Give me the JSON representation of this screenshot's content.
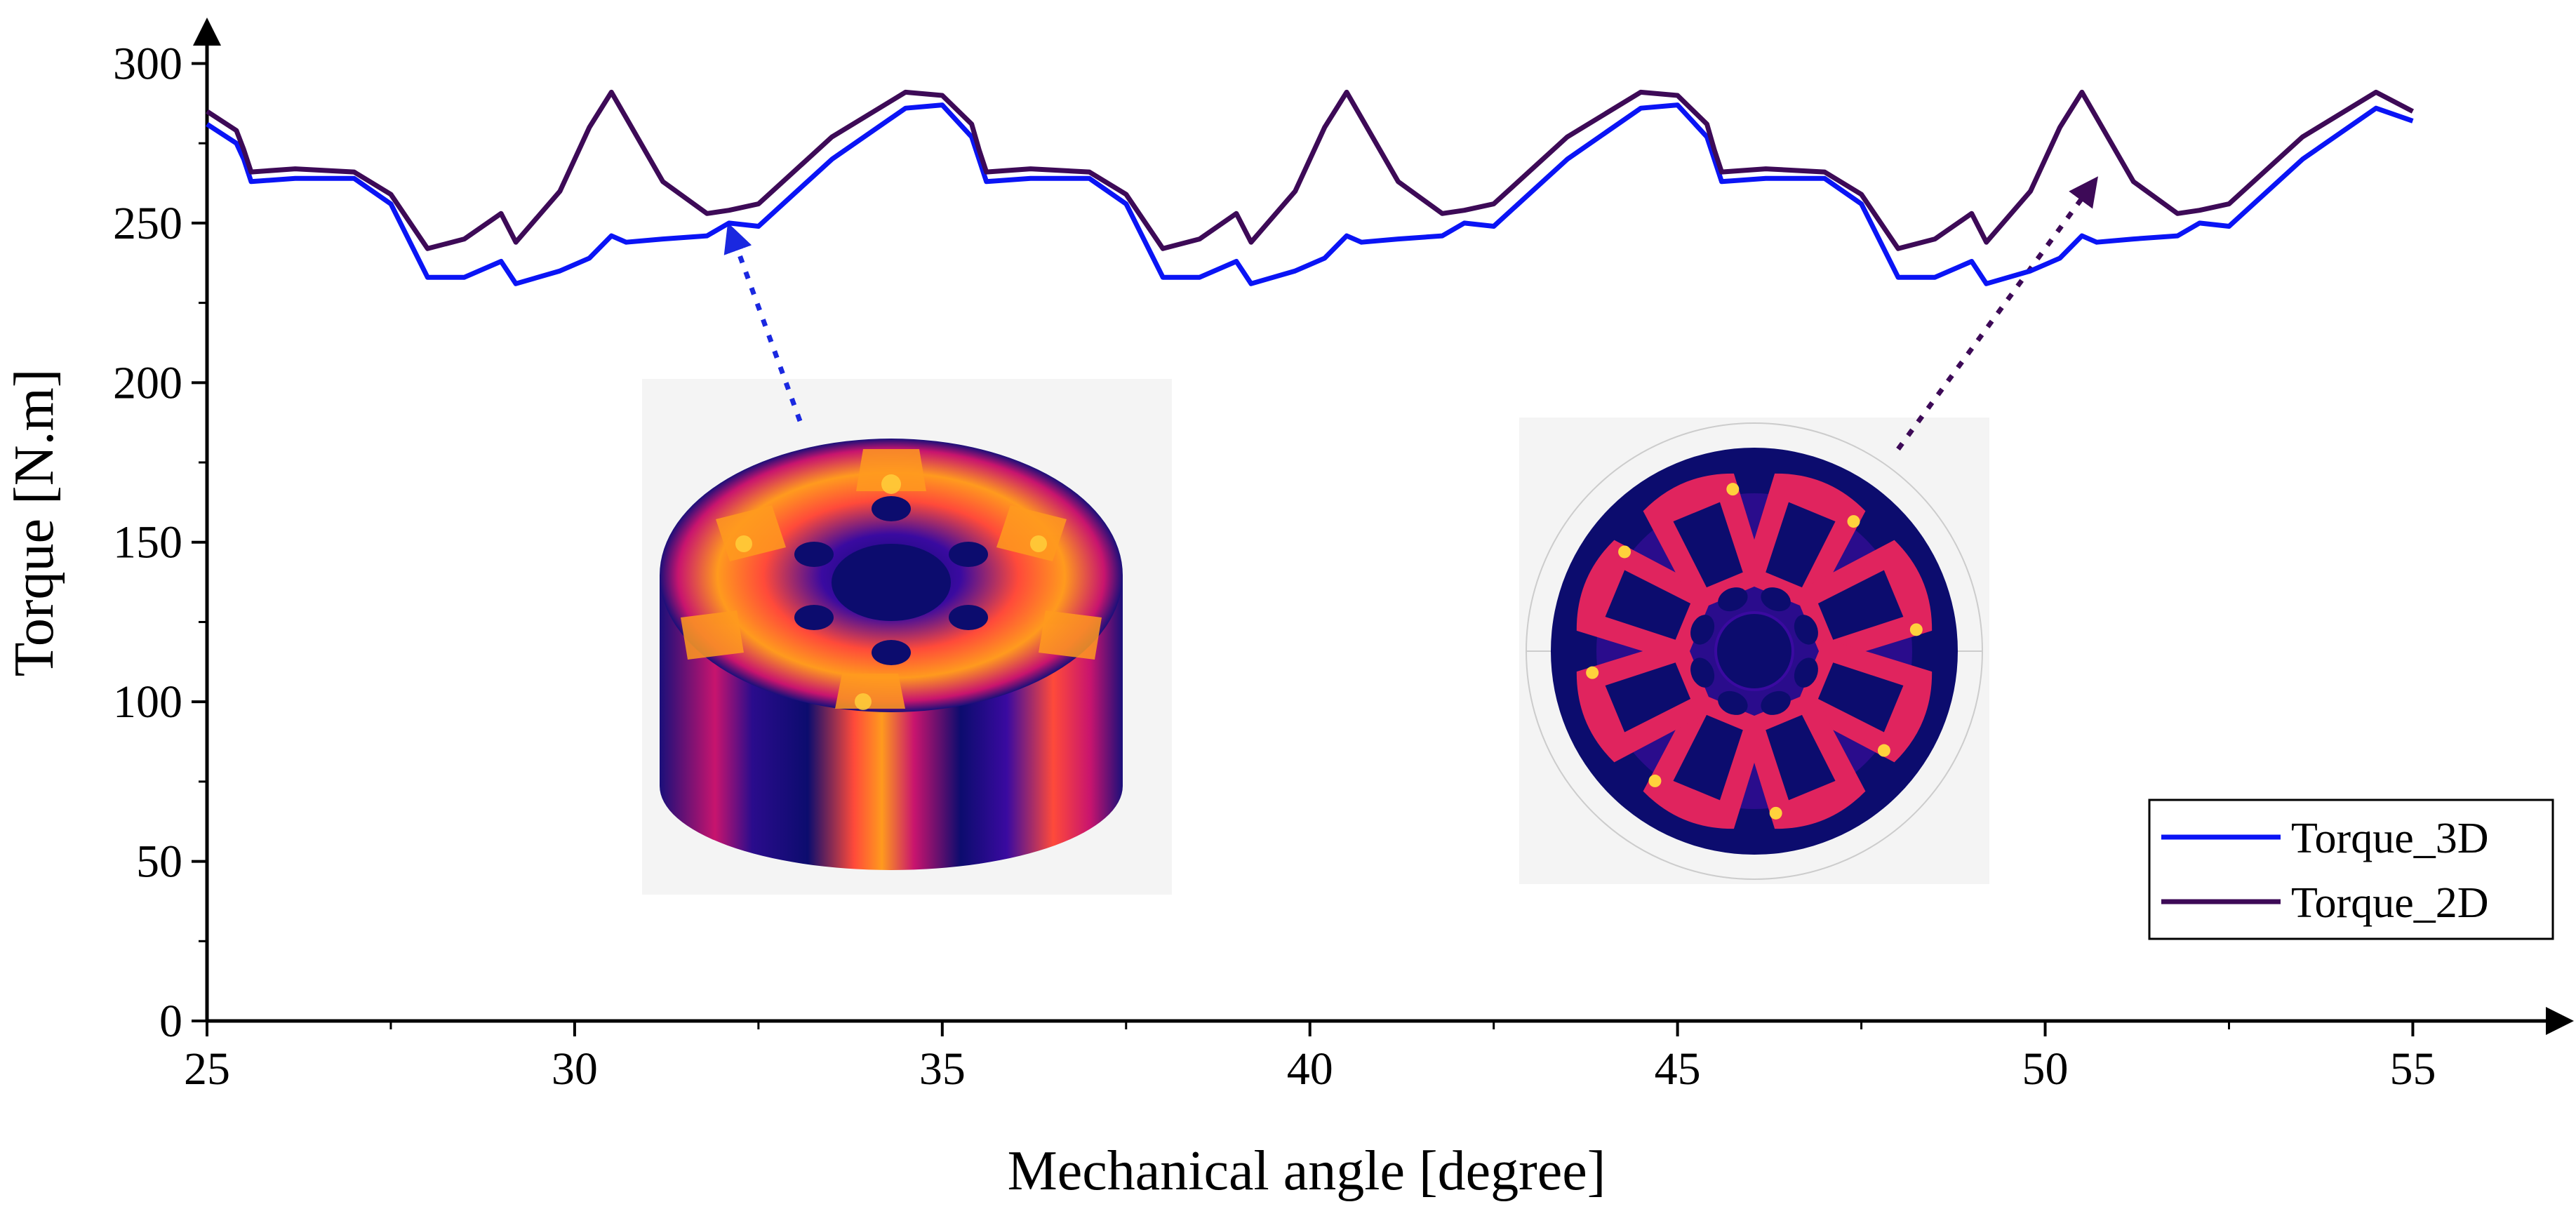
{
  "chart_data": {
    "type": "line",
    "title": "",
    "xlabel": "Mechanical angle [degree]",
    "ylabel": "Torque [N.m]",
    "xlim": [
      25,
      57
    ],
    "ylim": [
      0,
      310
    ],
    "x_ticks": [
      25,
      30,
      35,
      40,
      45,
      50,
      55
    ],
    "y_ticks": [
      0,
      50,
      100,
      150,
      200,
      250,
      300
    ],
    "x_tick_labels": [
      "25",
      "30",
      "35",
      "40",
      "45",
      "50",
      "55"
    ],
    "y_tick_labels": [
      "0",
      "50",
      "100",
      "150",
      "200",
      "250",
      "300"
    ],
    "grid": false,
    "legend_position": "lower-right",
    "series": [
      {
        "name": "Torque_3D",
        "color": "#0a14f5",
        "x": [
          25,
          25.4,
          25.5,
          25.6,
          26.2,
          27,
          27.5,
          28.0,
          28.5,
          29.0,
          29.2,
          29.8,
          30.2,
          30.5,
          30.7,
          31.2,
          31.8,
          32.1,
          32.5,
          33.5,
          34.5,
          35.0,
          35.4,
          35.5,
          35.6,
          36.2,
          37,
          37.5,
          38.0,
          38.5,
          39.0,
          39.2,
          39.8,
          40.2,
          40.5,
          40.7,
          41.2,
          41.8,
          42.1,
          42.5,
          43.5,
          44.5,
          45.0,
          45.4,
          45.5,
          45.6,
          46.2,
          47,
          47.5,
          48.0,
          48.5,
          49.0,
          49.2,
          49.8,
          50.2,
          50.5,
          50.7,
          51.2,
          51.8,
          52.1,
          52.5,
          53.5,
          54.5,
          55.0
        ],
        "values": [
          281,
          275,
          270,
          263,
          264,
          264,
          256,
          233,
          233,
          238,
          231,
          235,
          239,
          246,
          244,
          245,
          246,
          250,
          249,
          270,
          286,
          287,
          277,
          270,
          263,
          264,
          264,
          256,
          233,
          233,
          238,
          231,
          235,
          239,
          246,
          244,
          245,
          246,
          250,
          249,
          270,
          286,
          287,
          277,
          270,
          263,
          264,
          264,
          256,
          233,
          233,
          238,
          231,
          235,
          239,
          246,
          244,
          245,
          246,
          250,
          249,
          270,
          286,
          282
        ]
      },
      {
        "name": "Torque_2D",
        "color": "#3d0a57",
        "x": [
          25,
          25.4,
          25.5,
          25.6,
          26.2,
          27,
          27.5,
          28.0,
          28.5,
          29.0,
          29.2,
          29.8,
          30.2,
          30.5,
          30.7,
          31.2,
          31.8,
          32.1,
          32.5,
          33.5,
          34.5,
          35.0,
          35.4,
          35.5,
          35.6,
          36.2,
          37,
          37.5,
          38.0,
          38.5,
          39.0,
          39.2,
          39.8,
          40.2,
          40.5,
          40.7,
          41.2,
          41.8,
          42.1,
          42.5,
          43.5,
          44.5,
          45.0,
          45.4,
          45.5,
          45.6,
          46.2,
          47,
          47.5,
          48.0,
          48.5,
          49.0,
          49.2,
          49.8,
          50.2,
          50.5,
          50.7,
          51.2,
          51.8,
          52.1,
          52.5,
          53.5,
          54.5,
          55.0
        ],
        "values": [
          285,
          279,
          273,
          266,
          267,
          266,
          259,
          242,
          245,
          253,
          244,
          260,
          280,
          291,
          283,
          263,
          253,
          254,
          256,
          277,
          291,
          290,
          281,
          273,
          266,
          267,
          266,
          259,
          242,
          245,
          253,
          244,
          260,
          280,
          291,
          283,
          263,
          253,
          254,
          256,
          277,
          291,
          290,
          281,
          273,
          266,
          267,
          266,
          259,
          242,
          245,
          253,
          244,
          260,
          280,
          291,
          283,
          263,
          253,
          254,
          256,
          277,
          291,
          285
        ]
      }
    ]
  },
  "insets": {
    "left_color_scheme": [
      "#0c0c6e",
      "#3a0aa0",
      "#c8146e",
      "#ff4a3a",
      "#ff9a1e",
      "#ffd23c"
    ],
    "right_color_scheme": [
      "#0c0c6e",
      "#3a0aa0",
      "#c8146e",
      "#ff4a3a",
      "#ffd23c"
    ],
    "arrow_colors": [
      "#1a28e0",
      "#3d0a57"
    ]
  }
}
